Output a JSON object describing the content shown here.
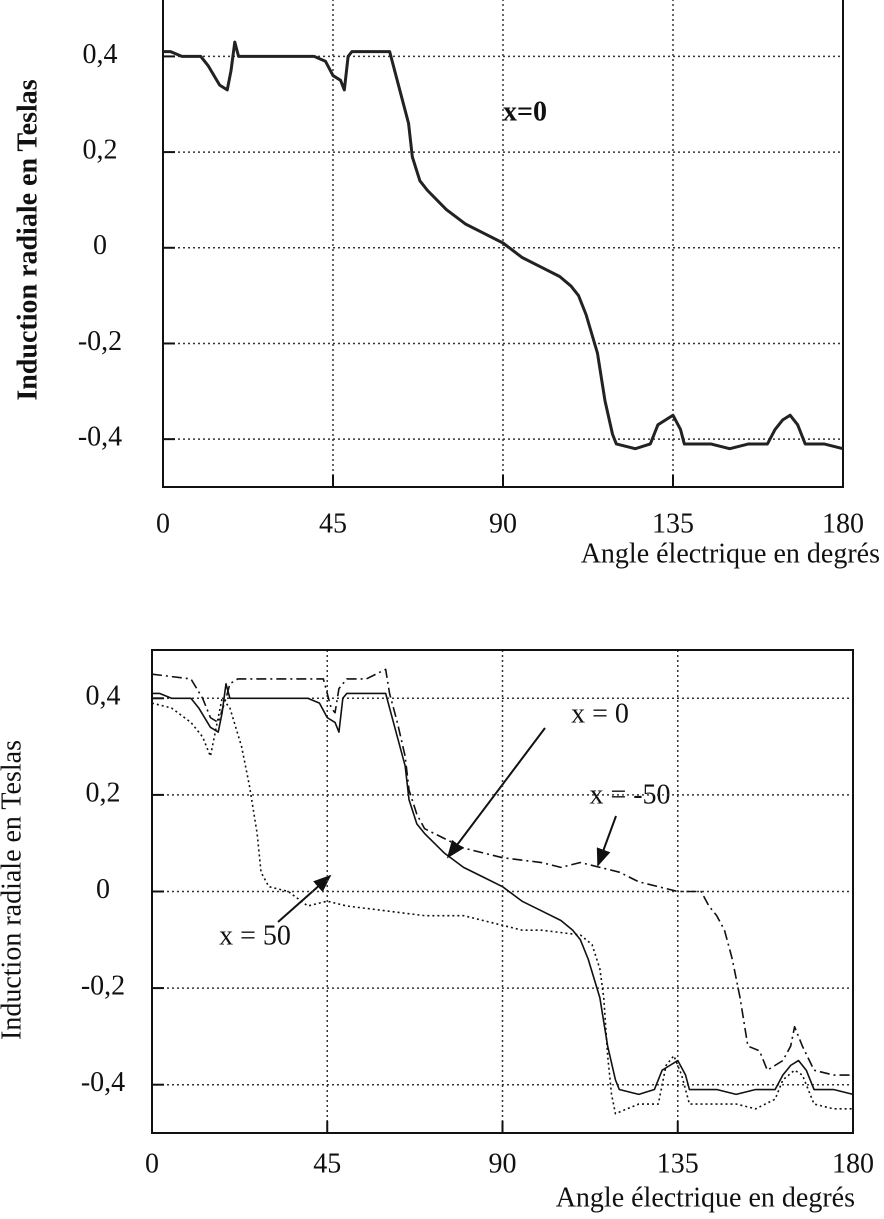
{
  "chart_data": [
    {
      "type": "line",
      "x_label": "Angle électrique en degrés",
      "y_label": "Induction radiale en Teslas",
      "xlim": [
        0,
        180
      ],
      "ylim": [
        -0.5,
        0.52
      ],
      "xticks": [
        0,
        45,
        90,
        135,
        180
      ],
      "yticks": [
        {
          "value": -0.4,
          "label": "-0,4"
        },
        {
          "value": -0.2,
          "label": "-0,2"
        },
        0,
        {
          "value": 0.2,
          "label": "0,2"
        },
        {
          "value": 0.4,
          "label": "0,4"
        }
      ],
      "grid": true,
      "annotations": [
        "x=0"
      ],
      "series": [
        {
          "color": "#222222",
          "dash": "solid",
          "x": [
            0,
            2,
            5,
            10,
            12,
            15,
            17,
            18,
            19,
            20,
            25,
            30,
            35,
            40,
            43,
            45,
            47,
            48,
            49,
            50,
            55,
            60,
            61,
            63,
            65,
            66,
            68,
            70,
            75,
            80,
            85,
            90,
            95,
            100,
            105,
            108,
            110,
            112,
            115,
            117,
            119,
            120,
            125,
            129,
            131,
            133,
            135,
            137,
            138,
            145,
            150,
            155,
            160,
            162,
            164,
            166,
            168,
            170,
            175,
            180
          ],
          "values": [
            0.41,
            0.41,
            0.4,
            0.4,
            0.38,
            0.34,
            0.33,
            0.37,
            0.43,
            0.4,
            0.4,
            0.4,
            0.4,
            0.4,
            0.39,
            0.36,
            0.35,
            0.33,
            0.4,
            0.41,
            0.41,
            0.41,
            0.38,
            0.32,
            0.26,
            0.19,
            0.14,
            0.12,
            0.08,
            0.05,
            0.03,
            0.01,
            -0.02,
            -0.04,
            -0.06,
            -0.08,
            -0.1,
            -0.14,
            -0.22,
            -0.32,
            -0.39,
            -0.41,
            -0.42,
            -0.41,
            -0.37,
            -0.36,
            -0.35,
            -0.38,
            -0.41,
            -0.41,
            -0.42,
            -0.41,
            -0.41,
            -0.38,
            -0.36,
            -0.35,
            -0.37,
            -0.41,
            -0.41,
            -0.42
          ]
        }
      ]
    },
    {
      "type": "line",
      "x_label": "Angle électrique en degrés",
      "y_label": "Induction radiale en Teslas",
      "xlim": [
        0,
        180
      ],
      "ylim": [
        -0.5,
        0.5
      ],
      "xticks": [
        0,
        45,
        90,
        135,
        180
      ],
      "yticks": [
        {
          "value": -0.4,
          "label": "-0,4"
        },
        {
          "value": -0.2,
          "label": "-0,2"
        },
        0,
        {
          "value": 0.2,
          "label": "0,2"
        },
        {
          "value": 0.4,
          "label": "0,4"
        }
      ],
      "grid": true,
      "annotations": [
        "x = 0",
        "x = -50",
        "x = 50"
      ],
      "series": [
        {
          "color": "#111111",
          "dash": "solid",
          "x": [
            0,
            2,
            5,
            10,
            12,
            15,
            17,
            18,
            19,
            20,
            25,
            30,
            35,
            40,
            43,
            45,
            47,
            48,
            49,
            50,
            55,
            60,
            61,
            63,
            65,
            66,
            68,
            70,
            75,
            80,
            85,
            90,
            95,
            100,
            105,
            108,
            110,
            112,
            115,
            117,
            119,
            120,
            125,
            129,
            131,
            133,
            135,
            137,
            138,
            145,
            150,
            155,
            160,
            162,
            164,
            166,
            168,
            170,
            175,
            180
          ],
          "values": [
            0.41,
            0.41,
            0.4,
            0.4,
            0.38,
            0.34,
            0.33,
            0.37,
            0.43,
            0.4,
            0.4,
            0.4,
            0.4,
            0.4,
            0.39,
            0.36,
            0.35,
            0.33,
            0.4,
            0.41,
            0.41,
            0.41,
            0.38,
            0.32,
            0.26,
            0.19,
            0.14,
            0.12,
            0.08,
            0.05,
            0.03,
            0.01,
            -0.02,
            -0.04,
            -0.06,
            -0.08,
            -0.1,
            -0.14,
            -0.22,
            -0.32,
            -0.39,
            -0.41,
            -0.42,
            -0.41,
            -0.37,
            -0.36,
            -0.35,
            -0.38,
            -0.41,
            -0.41,
            -0.42,
            -0.41,
            -0.41,
            -0.38,
            -0.36,
            -0.35,
            -0.37,
            -0.41,
            -0.41,
            -0.42
          ]
        },
        {
          "color": "#111111",
          "dash": "dashdot",
          "x": [
            0,
            10,
            13,
            15,
            17,
            19,
            20,
            22,
            40,
            44,
            46,
            47,
            48,
            50,
            55,
            60,
            61,
            63,
            65,
            66,
            68,
            70,
            75,
            80,
            85,
            90,
            100,
            105,
            110,
            115,
            120,
            125,
            130,
            135,
            141,
            143,
            145,
            147,
            149,
            151,
            153,
            156,
            158,
            160,
            162,
            164,
            165,
            167,
            170,
            175,
            180
          ],
          "values": [
            0.45,
            0.44,
            0.4,
            0.36,
            0.35,
            0.4,
            0.43,
            0.44,
            0.44,
            0.44,
            0.38,
            0.37,
            0.42,
            0.44,
            0.44,
            0.46,
            0.41,
            0.35,
            0.28,
            0.21,
            0.16,
            0.13,
            0.11,
            0.09,
            0.08,
            0.07,
            0.06,
            0.05,
            0.06,
            0.05,
            0.04,
            0.02,
            0.01,
            0,
            0,
            -0.03,
            -0.05,
            -0.08,
            -0.14,
            -0.22,
            -0.32,
            -0.33,
            -0.37,
            -0.36,
            -0.35,
            -0.32,
            -0.28,
            -0.32,
            -0.37,
            -0.38,
            -0.38
          ]
        },
        {
          "color": "#111111",
          "dash": "dotted",
          "x": [
            0,
            5,
            10,
            13,
            14,
            15,
            16,
            18,
            20,
            23,
            25,
            27,
            28,
            30,
            35,
            40,
            45,
            50,
            60,
            70,
            80,
            85,
            90,
            95,
            100,
            110,
            113,
            115,
            116,
            117,
            118,
            119,
            122,
            125,
            130,
            132,
            134,
            136,
            138,
            145,
            150,
            155,
            160,
            162,
            165,
            167,
            170,
            175,
            180
          ],
          "values": [
            0.39,
            0.38,
            0.35,
            0.32,
            0.3,
            0.28,
            0.32,
            0.4,
            0.38,
            0.3,
            0.22,
            0.12,
            0.04,
            0.01,
            0,
            -0.03,
            -0.02,
            -0.03,
            -0.04,
            -0.05,
            -0.05,
            -0.06,
            -0.07,
            -0.08,
            -0.08,
            -0.09,
            -0.11,
            -0.16,
            -0.22,
            -0.34,
            -0.42,
            -0.46,
            -0.45,
            -0.44,
            -0.44,
            -0.36,
            -0.34,
            -0.38,
            -0.44,
            -0.44,
            -0.44,
            -0.45,
            -0.43,
            -0.39,
            -0.37,
            -0.38,
            -0.44,
            -0.45,
            -0.45
          ]
        }
      ]
    }
  ]
}
